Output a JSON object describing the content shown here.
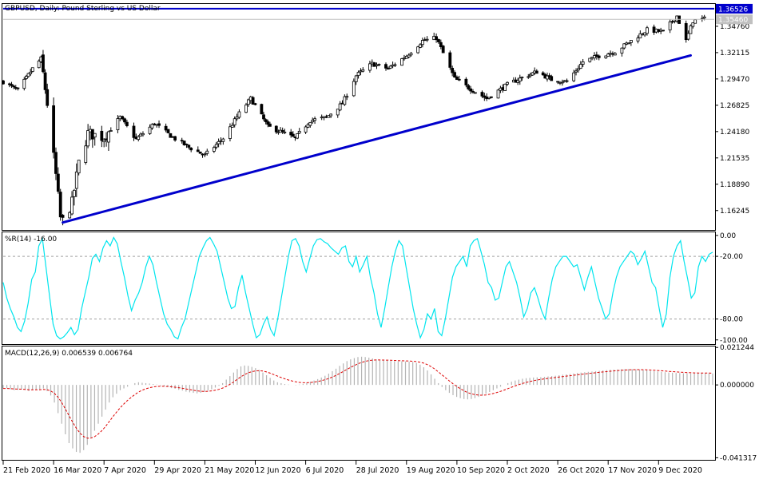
{
  "colors": {
    "up_candle": "#ffffff",
    "down_candle": "#000000",
    "trendline": "#0000cc",
    "resistance": "#0000cc",
    "williams_line": "#00e5ee",
    "macd_hist": "#b4b4b4",
    "macd_signal": "#dd0000",
    "price_tag_bg": "#0000cc",
    "last_tag_bg": "#c0c0c0",
    "grid": "#a0a0a0"
  },
  "chart_data": [
    {
      "type": "candlestick",
      "title": "GBPUSD, Daily:  Pound Sterling vs US Dollar",
      "y_ticks": [
        "1.34760",
        "1.32115",
        "1.29470",
        "1.26825",
        "1.24180",
        "1.21535",
        "1.18890",
        "1.16245"
      ],
      "ylim": [
        1.143,
        1.37
      ],
      "price_tags": {
        "resistance": "1.36526",
        "last": "1.35460"
      },
      "resistance_level": 1.36526,
      "trendline": {
        "from": {
          "date": "20 Mar 2020",
          "price": 1.1505
        },
        "to": {
          "date": "23 Dec 2020",
          "price": 1.3183
        }
      },
      "close_path": [
        [
          "21 Feb 2020",
          1.292
        ],
        [
          "28 Feb 2020",
          1.283
        ],
        [
          "6 Mar 2020",
          1.305
        ],
        [
          "10 Mar 2020",
          1.315
        ],
        [
          "13 Mar 2020",
          1.27
        ],
        [
          "17 Mar 2020",
          1.198
        ],
        [
          "19 Mar 2020",
          1.155
        ],
        [
          "20 Mar 2020",
          1.152
        ],
        [
          "24 Mar 2020",
          1.17
        ],
        [
          "27 Mar 2020",
          1.21
        ],
        [
          "31 Mar 2020",
          1.24
        ],
        [
          "7 Apr 2020",
          1.236
        ],
        [
          "14 Apr 2020",
          1.256
        ],
        [
          "21 Apr 2020",
          1.234
        ],
        [
          "29 Apr 2020",
          1.25
        ],
        [
          "7 May 2020",
          1.236
        ],
        [
          "14 May 2020",
          1.226
        ],
        [
          "21 May 2020",
          1.218
        ],
        [
          "29 May 2020",
          1.235
        ],
        [
          "5 Jun 2020",
          1.26
        ],
        [
          "10 Jun 2020",
          1.275
        ],
        [
          "18 Jun 2020",
          1.247
        ],
        [
          "26 Jun 2020",
          1.24
        ],
        [
          "1 Jul 2020",
          1.235
        ],
        [
          "8 Jul 2020",
          1.253
        ],
        [
          "15 Jul 2020",
          1.256
        ],
        [
          "22 Jul 2020",
          1.27
        ],
        [
          "28 Jul 2020",
          1.298
        ],
        [
          "4 Aug 2020",
          1.31
        ],
        [
          "11 Aug 2020",
          1.305
        ],
        [
          "19 Aug 2020",
          1.318
        ],
        [
          "26 Aug 2020",
          1.333
        ],
        [
          "1 Sep 2020",
          1.336
        ],
        [
          "9 Sep 2020",
          1.295
        ],
        [
          "15 Sep 2020",
          1.286
        ],
        [
          "23 Sep 2020",
          1.275
        ],
        [
          "2 Oct 2020",
          1.289
        ],
        [
          "9 Oct 2020",
          1.296
        ],
        [
          "16 Oct 2020",
          1.302
        ],
        [
          "23 Oct 2020",
          1.294
        ],
        [
          "30 Oct 2020",
          1.292
        ],
        [
          "6 Nov 2020",
          1.312
        ],
        [
          "13 Nov 2020",
          1.318
        ],
        [
          "20 Nov 2020",
          1.322
        ],
        [
          "27 Nov 2020",
          1.333
        ],
        [
          "4 Dec 2020",
          1.344
        ],
        [
          "11 Dec 2020",
          1.342
        ],
        [
          "17 Dec 2020",
          1.358
        ],
        [
          "21 Dec 2020",
          1.333
        ],
        [
          "24 Dec 2020",
          1.353
        ],
        [
          "29 Dec 2020",
          1.355
        ]
      ]
    },
    {
      "type": "line",
      "title": "%R(14) -16.00",
      "y_ticks": [
        "0.00",
        "-20.00",
        "-80.00",
        "-100.00"
      ],
      "levels": [
        -20,
        -80
      ],
      "ylim": [
        -104,
        3
      ],
      "values": [
        -45,
        -60,
        -70,
        -78,
        -88,
        -92,
        -82,
        -65,
        -42,
        -35,
        -10,
        -3,
        -30,
        -58,
        -85,
        -96,
        -99,
        -97,
        -93,
        -88,
        -95,
        -90,
        -70,
        -55,
        -40,
        -22,
        -18,
        -25,
        -12,
        -5,
        -10,
        -2,
        -8,
        -25,
        -40,
        -58,
        -72,
        -62,
        -55,
        -45,
        -30,
        -20,
        -28,
        -45,
        -60,
        -75,
        -85,
        -90,
        -97,
        -99,
        -88,
        -80,
        -65,
        -50,
        -35,
        -20,
        -12,
        -5,
        -2,
        -8,
        -15,
        -30,
        -45,
        -60,
        -70,
        -68,
        -50,
        -38,
        -55,
        -70,
        -85,
        -98,
        -95,
        -85,
        -78,
        -90,
        -96,
        -80,
        -60,
        -40,
        -20,
        -5,
        -3,
        -10,
        -25,
        -35,
        -22,
        -10,
        -4,
        -3,
        -6,
        -8,
        -12,
        -15,
        -18,
        -12,
        -10,
        -25,
        -30,
        -20,
        -35,
        -28,
        -20,
        -40,
        -55,
        -75,
        -88,
        -70,
        -50,
        -30,
        -15,
        -5,
        -10,
        -30,
        -50,
        -70,
        -85,
        -98,
        -90,
        -75,
        -80,
        -70,
        -92,
        -96,
        -80,
        -60,
        -40,
        -30,
        -25,
        -20,
        -30,
        -10,
        -5,
        -3,
        -15,
        -28,
        -45,
        -50,
        -62,
        -60,
        -45,
        -30,
        -25,
        -35,
        -45,
        -60,
        -78,
        -70,
        -55,
        -50,
        -60,
        -72,
        -80,
        -60,
        -42,
        -30,
        -25,
        -20,
        -20,
        -25,
        -30,
        -28,
        -40,
        -52,
        -40,
        -30,
        -45,
        -60,
        -70,
        -80,
        -75,
        -55,
        -40,
        -30,
        -25,
        -20,
        -15,
        -18,
        -28,
        -22,
        -15,
        -30,
        -45,
        -50,
        -70,
        -88,
        -75,
        -40,
        -20,
        -10,
        -5,
        -25,
        -42,
        -60,
        -55,
        -30,
        -20,
        -25,
        -18,
        -16
      ]
    },
    {
      "type": "bar",
      "title": "MACD(12,26,9) 0.006539 0.006764",
      "y_ticks": [
        "0.021244",
        "0.000000",
        "-0.041317"
      ],
      "ylim": [
        -0.0425,
        0.0218
      ],
      "histogram": [
        -0.002,
        -0.002,
        -0.0025,
        -0.003,
        -0.0028,
        -0.0025,
        -0.003,
        -0.0035,
        -0.003,
        -0.0028,
        -0.0025,
        -0.002,
        -0.0035,
        -0.006,
        -0.01,
        -0.016,
        -0.022,
        -0.028,
        -0.033,
        -0.036,
        -0.038,
        -0.0385,
        -0.037,
        -0.034,
        -0.03,
        -0.026,
        -0.022,
        -0.018,
        -0.014,
        -0.01,
        -0.007,
        -0.005,
        -0.003,
        -0.002,
        -0.001,
        0.0,
        0.001,
        0.0015,
        0.0012,
        0.001,
        0.0008,
        0.0005,
        0.0002,
        -0.0003,
        -0.0008,
        -0.0012,
        -0.0018,
        -0.0022,
        -0.0028,
        -0.0032,
        -0.0038,
        -0.0042,
        -0.0045,
        -0.0048,
        -0.0045,
        -0.004,
        -0.0032,
        -0.0025,
        -0.0015,
        -0.0005,
        0.001,
        0.003,
        0.005,
        0.007,
        0.009,
        0.0105,
        0.011,
        0.0108,
        0.0102,
        0.0095,
        0.0085,
        0.007,
        0.0055,
        0.004,
        0.0025,
        0.0015,
        0.001,
        0.0005,
        0.0002,
        0.0,
        -0.0002,
        0.0002,
        0.0006,
        0.0012,
        0.0018,
        0.0025,
        0.0033,
        0.0042,
        0.0052,
        0.0064,
        0.0078,
        0.0092,
        0.0108,
        0.0122,
        0.0135,
        0.0145,
        0.0152,
        0.0158,
        0.016,
        0.0158,
        0.0155,
        0.015,
        0.0145,
        0.0142,
        0.014,
        0.0138,
        0.0136,
        0.0135,
        0.0134,
        0.0134,
        0.0133,
        0.0132,
        0.013,
        0.0125,
        0.0115,
        0.01,
        0.0082,
        0.006,
        0.0035,
        0.001,
        -0.0012,
        -0.003,
        -0.0045,
        -0.0058,
        -0.0068,
        -0.0075,
        -0.008,
        -0.0082,
        -0.008,
        -0.0075,
        -0.0068,
        -0.006,
        -0.005,
        -0.004,
        -0.003,
        -0.002,
        -0.001,
        0.0,
        0.001,
        0.0018,
        0.0025,
        0.003,
        0.0035,
        0.0038,
        0.004,
        0.0042,
        0.0043,
        0.0044,
        0.0046,
        0.0048,
        0.005,
        0.0052,
        0.0055,
        0.0058,
        0.006,
        0.0062,
        0.0065,
        0.0068,
        0.007,
        0.0072,
        0.0074,
        0.0076,
        0.0078,
        0.008,
        0.0082,
        0.0084,
        0.0086,
        0.0087,
        0.0088,
        0.0089,
        0.009,
        0.009,
        0.0089,
        0.0088,
        0.0087,
        0.0085,
        0.0083,
        0.008,
        0.0078,
        0.0076,
        0.0074,
        0.0072,
        0.007,
        0.0069,
        0.0068,
        0.0067,
        0.0066,
        0.0066,
        0.0065,
        0.0065,
        0.0065,
        0.0066,
        0.0067,
        0.0066,
        0.0065
      ]
    }
  ],
  "x_axis": {
    "date_labels": [
      "21 Feb 2020",
      "16 Mar 2020",
      "7 Apr 2020",
      "29 Apr 2020",
      "21 May 2020",
      "12 Jun 2020",
      "6 Jul 2020",
      "28 Jul 2020",
      "19 Aug 2020",
      "10 Sep 2020",
      "2 Oct 2020",
      "26 Oct 2020",
      "17 Nov 2020",
      "9 Dec 2020"
    ]
  }
}
